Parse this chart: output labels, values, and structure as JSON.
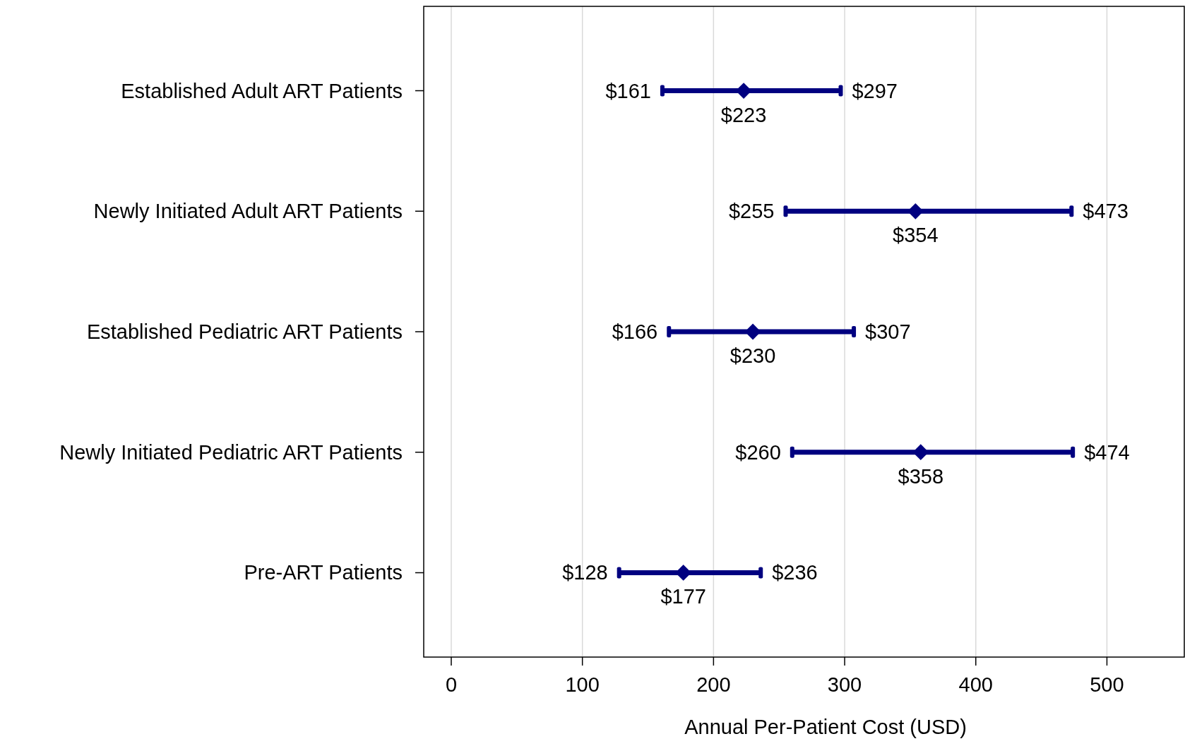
{
  "chart_data": {
    "type": "bar",
    "orientation": "horizontal",
    "grid": "x",
    "categories": [
      "Established Adult ART Patients",
      "Newly Initiated Adult ART Patients",
      "Established Pediatric ART Patients",
      "Newly Initiated Pediatric ART Patients",
      "Pre-ART Patients"
    ],
    "series": [
      {
        "color": "#000080",
        "base": [
          161,
          255,
          166,
          260,
          128
        ],
        "values": [
          136,
          218,
          141,
          214,
          108
        ]
      },
      {
        "type": "scatter",
        "color": "#000080",
        "marker": "diamond",
        "values": [
          223,
          354,
          230,
          358,
          177
        ],
        "value_labels": [
          "$223",
          "$354",
          "$230",
          "$358",
          "$177"
        ]
      }
    ],
    "annotations": [
      {
        "text": "$161",
        "x": 161,
        "y": "Established Adult ART Patients"
      },
      {
        "text": "$297",
        "x": 297,
        "y": "Established Adult ART Patients"
      },
      {
        "text": "$255",
        "x": 255,
        "y": "Newly Initiated Adult ART Patients"
      },
      {
        "text": "$473",
        "x": 473,
        "y": "Newly Initiated Adult ART Patients"
      },
      {
        "text": "$166",
        "x": 166,
        "y": "Established Pediatric ART Patients"
      },
      {
        "text": "$307",
        "x": 307,
        "y": "Established Pediatric ART Patients"
      },
      {
        "text": "$260",
        "x": 260,
        "y": "Newly Initiated Pediatric ART Patients"
      },
      {
        "text": "$474",
        "x": 474,
        "y": "Newly Initiated Pediatric ART Patients"
      },
      {
        "text": "$128",
        "x": 128,
        "y": "Pre-ART Patients"
      },
      {
        "text": "$236",
        "x": 236,
        "y": "Pre-ART Patients"
      }
    ],
    "xlabel": "Annual Per-Patient Cost (USD)",
    "xlim": [
      -21,
      559
    ],
    "xticks": [
      0,
      100,
      200,
      300,
      400,
      500
    ]
  }
}
